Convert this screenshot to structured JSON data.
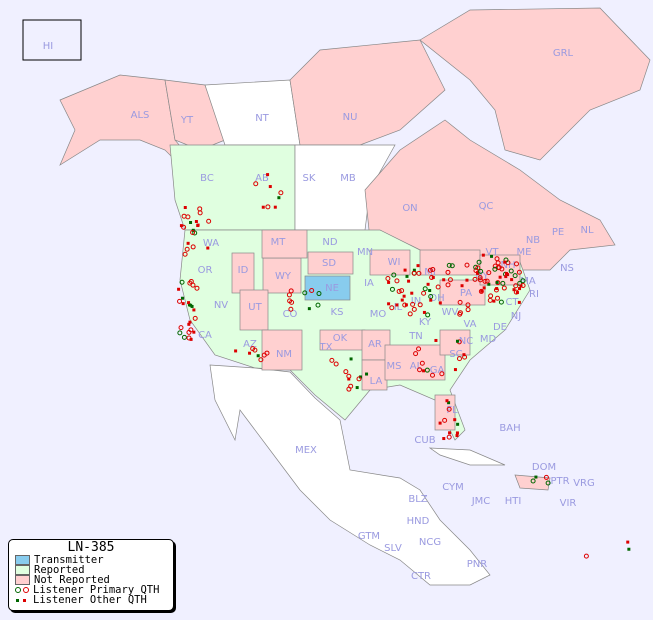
{
  "legend": {
    "title": "LN-385",
    "items": [
      {
        "label": "Transmitter",
        "color": "#88ccee"
      },
      {
        "label": "Reported",
        "color": "#e0ffe0"
      },
      {
        "label": "Not Reported",
        "color": "#ffd0d0"
      },
      {
        "label": "Listener Primary QTH",
        "colors": [
          "#006600",
          "#dd0000"
        ]
      },
      {
        "label": "Listener Other QTH",
        "colors": [
          "#006600",
          "#dd0000"
        ]
      }
    ]
  },
  "colors": {
    "background": "#f0f0ff",
    "reported": "#e0ffe0",
    "not_reported": "#ffd0d0",
    "transmitter": "#88ccee",
    "unlisted": "#ffffff",
    "label": "#9a9ae0"
  },
  "regions": [
    "HI",
    "ALS",
    "YT",
    "NT",
    "NU",
    "GRL",
    "BC",
    "AB",
    "SK",
    "MB",
    "ON",
    "QC",
    "NL",
    "NB",
    "PE",
    "NS",
    "WA",
    "OR",
    "CA",
    "ID",
    "NV",
    "MT",
    "WY",
    "UT",
    "AZ",
    "CO",
    "NM",
    "ND",
    "SD",
    "NE",
    "KS",
    "OK",
    "TX",
    "MN",
    "IA",
    "MO",
    "AR",
    "LA",
    "WI",
    "IL",
    "MS",
    "MI",
    "IN",
    "KY",
    "TN",
    "AL",
    "OH",
    "WV",
    "VA",
    "NC",
    "SC",
    "GA",
    "FL",
    "PA",
    "NY",
    "NJ",
    "DE",
    "MD",
    "CT",
    "RI",
    "MA",
    "VT",
    "NH",
    "ME",
    "MEX",
    "CUB",
    "BAH",
    "DOM",
    "PTR",
    "VRG",
    "VIR",
    "CYM",
    "JMC",
    "HTI",
    "BLZ",
    "GTM",
    "HND",
    "SLV",
    "NCG",
    "CTR",
    "PNR"
  ]
}
